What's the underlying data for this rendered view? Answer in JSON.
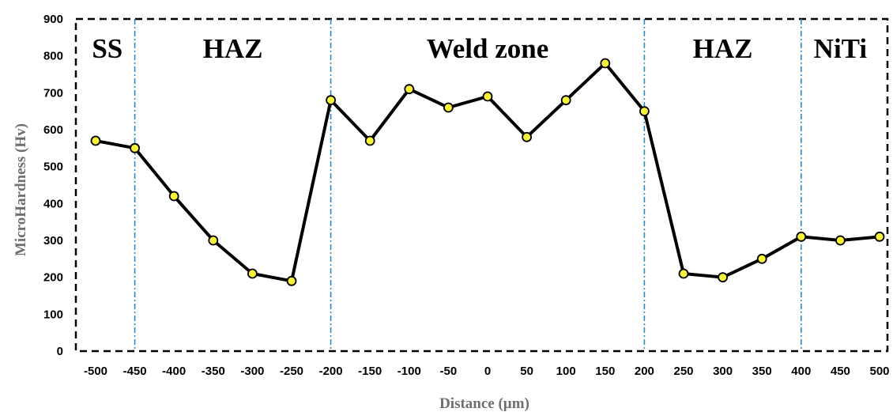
{
  "chart_data": {
    "type": "line",
    "title": "",
    "xlabel": "Distance (µm)",
    "ylabel": "MicroHardness (Hv)",
    "xlim": [
      -500,
      500
    ],
    "ylim": [
      0,
      900
    ],
    "x_ticks": [
      "-500",
      "-450",
      "-400",
      "-350",
      "-300",
      "-250",
      "-200",
      "-150",
      "-100",
      "-50",
      "0",
      "50",
      "100",
      "150",
      "200",
      "250",
      "300",
      "350",
      "400",
      "450",
      "500"
    ],
    "y_ticks": [
      "0",
      "100",
      "200",
      "300",
      "400",
      "500",
      "600",
      "700",
      "800",
      "900"
    ],
    "series": [
      {
        "x": [
          -500,
          -450,
          -400,
          -350,
          -300,
          -250,
          -200,
          -150,
          -100,
          -50,
          0,
          50,
          100,
          150,
          200,
          250,
          300,
          350,
          400,
          450,
          500
        ],
        "y": [
          570,
          550,
          420,
          300,
          210,
          190,
          680,
          570,
          710,
          660,
          690,
          580,
          680,
          780,
          650,
          210,
          200,
          250,
          310,
          300,
          310
        ]
      }
    ],
    "zone_boundaries": [
      -450,
      -200,
      200,
      400
    ],
    "zones": [
      {
        "label": "SS",
        "from": -500,
        "to": -450
      },
      {
        "label": "HAZ",
        "from": -450,
        "to": -200
      },
      {
        "label": "Weld zone",
        "from": -200,
        "to": 200
      },
      {
        "label": "HAZ",
        "from": 200,
        "to": 400
      },
      {
        "label": "NiTi",
        "from": 400,
        "to": 500
      }
    ],
    "grid": false,
    "legend": "none",
    "colors": {
      "line": "#000000",
      "marker_fill": "#f7f23c",
      "marker_stroke": "#000000",
      "zone_line": "#2a8bc4",
      "frame": "#000000"
    }
  }
}
